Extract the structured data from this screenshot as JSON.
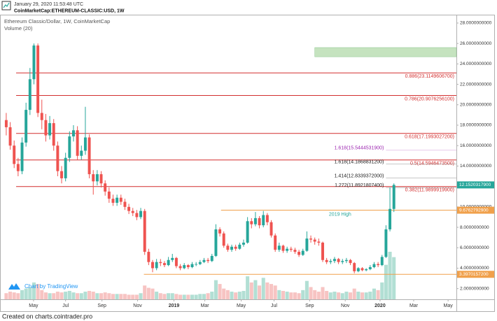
{
  "header": {
    "date": "January 29, 2020 11:53:48 UTC",
    "symbol": "CoinMarketCap:ETHEREUM-CLASSIC:USD, 1W"
  },
  "chart_data": {
    "type": "candlestick",
    "title": "Ethereum Classic/Dollar, 1W, CoinMarketCap",
    "volume_label": "Volume (20)",
    "up_color": "#26a69a",
    "down_color": "#ef5350",
    "volume_up_color": "#b2dfd4",
    "volume_down_color": "#f7c4c3",
    "candles": [
      [
        18.5,
        19.2,
        17.0,
        17.8
      ],
      [
        17.8,
        18.3,
        15.6,
        16.0
      ],
      [
        16.0,
        16.5,
        13.8,
        14.2
      ],
      [
        14.2,
        14.8,
        13.0,
        13.5
      ],
      [
        13.5,
        16.8,
        13.2,
        16.3
      ],
      [
        16.3,
        20.2,
        15.9,
        19.5
      ],
      [
        19.5,
        23.6,
        19.0,
        22.5
      ],
      [
        22.5,
        26.0,
        22.0,
        25.8
      ],
      [
        25.8,
        26.0,
        18.8,
        19.2
      ],
      [
        19.2,
        20.5,
        17.6,
        18.5
      ],
      [
        18.5,
        19.1,
        16.4,
        17.0
      ],
      [
        17.0,
        18.9,
        16.6,
        18.2
      ],
      [
        18.2,
        18.6,
        15.5,
        16.0
      ],
      [
        16.0,
        16.4,
        13.0,
        13.5
      ],
      [
        13.5,
        14.0,
        12.3,
        12.8
      ],
      [
        12.8,
        15.3,
        12.5,
        14.8
      ],
      [
        14.8,
        17.4,
        14.4,
        16.9
      ],
      [
        16.9,
        18.0,
        16.4,
        17.5
      ],
      [
        17.5,
        17.9,
        14.6,
        15.0
      ],
      [
        15.0,
        16.0,
        14.6,
        15.5
      ],
      [
        15.5,
        19.8,
        15.1,
        16.8
      ],
      [
        16.8,
        17.1,
        12.8,
        13.2
      ],
      [
        13.2,
        13.6,
        11.2,
        12.5
      ],
      [
        12.5,
        13.6,
        12.1,
        13.2
      ],
      [
        13.2,
        13.5,
        11.9,
        12.3
      ],
      [
        12.3,
        12.6,
        11.1,
        11.5
      ],
      [
        11.5,
        11.9,
        10.4,
        10.8
      ],
      [
        10.8,
        11.2,
        10.1,
        10.4
      ],
      [
        10.4,
        11.2,
        10.1,
        10.9
      ],
      [
        10.9,
        11.2,
        10.2,
        10.5
      ],
      [
        10.5,
        10.8,
        9.7,
        10.0
      ],
      [
        10.0,
        10.3,
        9.3,
        9.6
      ],
      [
        9.6,
        9.9,
        9.1,
        9.4
      ],
      [
        9.4,
        9.7,
        8.7,
        9.0
      ],
      [
        9.0,
        9.9,
        8.8,
        9.6
      ],
      [
        9.6,
        9.8,
        5.3,
        5.6
      ],
      [
        5.6,
        5.9,
        4.3,
        4.6
      ],
      [
        4.6,
        4.8,
        3.6,
        4.0
      ],
      [
        4.0,
        4.9,
        3.8,
        4.6
      ],
      [
        4.6,
        4.9,
        4.2,
        4.5
      ],
      [
        4.5,
        4.7,
        4.1,
        4.3
      ],
      [
        4.3,
        5.1,
        4.2,
        4.8
      ],
      [
        4.8,
        5.4,
        4.6,
        5.0
      ],
      [
        5.0,
        5.1,
        4.0,
        4.2
      ],
      [
        4.2,
        4.4,
        3.8,
        4.0
      ],
      [
        4.0,
        4.5,
        3.9,
        4.3
      ],
      [
        4.3,
        4.4,
        3.9,
        4.1
      ],
      [
        4.1,
        4.6,
        4.0,
        4.4
      ],
      [
        4.4,
        4.6,
        4.2,
        4.4
      ],
      [
        4.4,
        4.8,
        4.3,
        4.6
      ],
      [
        4.6,
        5.0,
        4.5,
        4.8
      ],
      [
        4.8,
        5.0,
        4.5,
        4.7
      ],
      [
        4.7,
        5.4,
        4.6,
        5.2
      ],
      [
        5.2,
        8.3,
        5.1,
        7.8
      ],
      [
        7.8,
        8.0,
        7.1,
        7.4
      ],
      [
        7.4,
        7.6,
        6.0,
        6.2
      ],
      [
        6.2,
        6.4,
        5.6,
        5.8
      ],
      [
        5.8,
        6.3,
        5.6,
        6.1
      ],
      [
        6.1,
        6.3,
        5.7,
        5.9
      ],
      [
        5.9,
        6.5,
        5.8,
        6.3
      ],
      [
        6.3,
        6.8,
        6.1,
        6.5
      ],
      [
        6.5,
        9.0,
        6.4,
        8.6
      ],
      [
        8.6,
        8.9,
        7.9,
        8.3
      ],
      [
        8.3,
        9.5,
        8.1,
        8.9
      ],
      [
        8.9,
        9.1,
        7.9,
        8.2
      ],
      [
        8.2,
        9.6,
        8.0,
        9.2
      ],
      [
        9.2,
        9.4,
        8.2,
        8.5
      ],
      [
        8.5,
        8.7,
        7.0,
        7.2
      ],
      [
        7.2,
        7.4,
        5.6,
        5.8
      ],
      [
        5.8,
        6.5,
        5.6,
        6.2
      ],
      [
        6.2,
        6.3,
        5.5,
        5.7
      ],
      [
        5.7,
        6.1,
        5.5,
        5.9
      ],
      [
        5.9,
        6.1,
        5.6,
        5.8
      ],
      [
        5.8,
        6.0,
        5.4,
        5.6
      ],
      [
        5.6,
        5.8,
        5.1,
        5.3
      ],
      [
        5.3,
        5.9,
        5.2,
        5.7
      ],
      [
        5.7,
        7.6,
        5.6,
        6.9
      ],
      [
        6.9,
        7.2,
        6.5,
        6.8
      ],
      [
        6.8,
        7.0,
        6.3,
        6.6
      ],
      [
        6.6,
        6.9,
        6.2,
        6.5
      ],
      [
        6.5,
        6.6,
        4.6,
        4.8
      ],
      [
        4.8,
        5.0,
        4.4,
        4.6
      ],
      [
        4.6,
        4.9,
        4.4,
        4.7
      ],
      [
        4.7,
        5.1,
        4.5,
        4.9
      ],
      [
        4.9,
        5.0,
        4.4,
        4.6
      ],
      [
        4.6,
        4.9,
        4.4,
        4.7
      ],
      [
        4.7,
        5.0,
        4.5,
        4.8
      ],
      [
        4.8,
        4.9,
        4.3,
        4.5
      ],
      [
        4.5,
        4.6,
        3.5,
        3.7
      ],
      [
        3.7,
        4.1,
        3.6,
        4.0
      ],
      [
        4.0,
        4.1,
        3.7,
        3.8
      ],
      [
        3.8,
        4.0,
        3.7,
        3.9
      ],
      [
        3.9,
        4.3,
        3.8,
        4.1
      ],
      [
        4.1,
        4.6,
        4.0,
        4.4
      ],
      [
        4.4,
        4.6,
        4.1,
        4.3
      ],
      [
        4.3,
        5.3,
        4.2,
        5.1
      ],
      [
        5.1,
        8.2,
        5.0,
        7.8
      ],
      [
        7.8,
        11.9,
        7.6,
        9.8
      ],
      [
        9.8,
        12.3,
        9.5,
        12.15
      ]
    ],
    "volume": [
      8,
      10,
      9,
      8,
      12,
      14,
      16,
      22,
      20,
      12,
      9,
      8,
      8,
      10,
      9,
      10,
      11,
      9,
      8,
      8,
      10,
      11,
      10,
      8,
      8,
      9,
      8,
      7,
      7,
      7,
      7,
      6,
      6,
      6,
      8,
      18,
      15,
      14,
      10,
      8,
      7,
      8,
      8,
      7,
      6,
      6,
      6,
      6,
      6,
      7,
      7,
      8,
      10,
      25,
      20,
      14,
      12,
      10,
      9,
      10,
      11,
      30,
      22,
      25,
      18,
      28,
      22,
      20,
      18,
      12,
      11,
      10,
      9,
      9,
      8,
      12,
      24,
      16,
      12,
      10,
      16,
      11,
      9,
      10,
      9,
      8,
      10,
      9,
      14,
      10,
      9,
      9,
      10,
      14,
      12,
      22,
      45,
      62,
      55
    ],
    "xlim": [
      -1.4,
      113.8
    ],
    "xticks": [
      {
        "value": 6.9,
        "label": "May"
      },
      {
        "value": 15.0,
        "label": "Jul"
      },
      {
        "value": 24.2,
        "label": "Sep"
      },
      {
        "value": 33.2,
        "label": "Nov"
      },
      {
        "value": 42.4,
        "label": "2019"
      },
      {
        "value": 50.2,
        "label": "Mar"
      },
      {
        "value": 59.4,
        "label": "May"
      },
      {
        "value": 67.7,
        "label": "Jul"
      },
      {
        "value": 76.7,
        "label": "Sep"
      },
      {
        "value": 85.7,
        "label": "Nov"
      },
      {
        "value": 94.5,
        "label": "2020"
      },
      {
        "value": 103.0,
        "label": "Mar"
      },
      {
        "value": 111.7,
        "label": "May"
      }
    ],
    "ylim": [
      0.95,
      28.75
    ],
    "yticks": [
      {
        "value": 2,
        "label": "2.0000000000"
      },
      {
        "value": 4,
        "label": "4.0000000000"
      },
      {
        "value": 6,
        "label": "6.0000000000"
      },
      {
        "value": 8,
        "label": "8.0000000000"
      },
      {
        "value": 10,
        "label": "10.0000000000"
      },
      {
        "value": 12,
        "label": "12.0000000000"
      },
      {
        "value": 14,
        "label": "14.0000000000"
      },
      {
        "value": 16,
        "label": "16.0000000000"
      },
      {
        "value": 18,
        "label": "18.0000000000"
      },
      {
        "value": 20,
        "label": "20.0000000000"
      },
      {
        "value": 22,
        "label": "22.0000000000"
      },
      {
        "value": 24,
        "label": "24.0000000000"
      },
      {
        "value": 26,
        "label": "26.0000000000"
      },
      {
        "value": 28,
        "label": "28.0000000000"
      }
    ],
    "zone": {
      "values": [
        24.7,
        25.6
      ],
      "from": 78,
      "color": "#c5e3bf"
    },
    "levels": [
      {
        "label": "0.886(23.1149606700)",
        "value": 23.11496067,
        "from": 2.5,
        "color": "#d32f2f"
      },
      {
        "label": "0.786(20.9076256100)",
        "value": 20.90762561,
        "from": 2.5,
        "color": "#d32f2f"
      },
      {
        "label": "0.618(17.1993027200)",
        "value": 17.19930272,
        "from": 2.5,
        "color": "#d32f2f"
      },
      {
        "label": "0.5(14.5946473500)",
        "value": 14.59464735,
        "from": 2.5,
        "color": "#d32f2f"
      },
      {
        "label": "0.382(11.9899919900)",
        "value": 11.98999199,
        "from": 2.5,
        "color": "#d32f2f"
      }
    ],
    "extensions": [
      {
        "label": "1.618(15.5444531900)",
        "value": 15.54445319,
        "from": 96,
        "color": "#9c27b0"
      },
      {
        "label": "1.618(14.1868831200)",
        "value": 14.18688312,
        "from": 96,
        "color": "#222222"
      },
      {
        "label": "1.414(12.8339372000)",
        "value": 12.8339372,
        "from": 96,
        "color": "#222222"
      },
      {
        "label": "1.272(11.8921807400)",
        "value": 11.89218074,
        "from": 96,
        "color": "#222222"
      }
    ],
    "horizontal_lines": [
      {
        "value": 9.67627929,
        "from": 54.3,
        "color": "#f0a04b",
        "note": "2019 High",
        "note_color": "#26a69a"
      },
      {
        "value": 3.39701572,
        "from": 34.8,
        "color": "#f0a04b"
      }
    ],
    "price_tags": [
      {
        "value": 12.15203179,
        "label": "12.1520317900",
        "color": "#26a69a"
      },
      {
        "value": 9.67627929,
        "label": "9.6762792900",
        "color": "#f0a04b"
      },
      {
        "value": 3.39701572,
        "label": "3.3970157200",
        "color": "#f0a04b"
      }
    ]
  },
  "branding": "Chart by TradingView",
  "footer": "Created on charts.cointrader.pro"
}
